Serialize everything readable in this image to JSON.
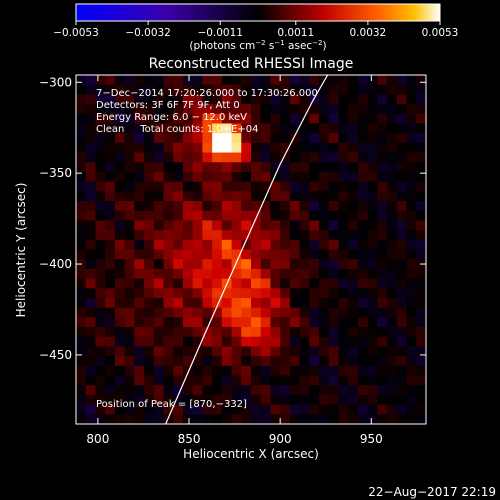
{
  "chart_data": {
    "type": "heatmap",
    "title": "Reconstructed RHESSI Image",
    "xlabel": "Heliocentric X (arcsec)",
    "ylabel": "Heliocentric Y (arcsec)",
    "xlim": [
      788,
      980
    ],
    "ylim": [
      -488,
      -296
    ],
    "x_ticks": [
      800,
      850,
      900,
      950
    ],
    "x_tick_labels": [
      "800",
      "850",
      "900",
      "950"
    ],
    "y_ticks": [
      -300,
      -350,
      -400,
      -450
    ],
    "y_tick_labels": [
      "−300",
      "−350",
      "−400",
      "−450"
    ],
    "colorbar": {
      "ticks": [
        -0.0053,
        -0.0032,
        -0.0011,
        0.0011,
        0.0032,
        0.0053
      ],
      "tick_labels": [
        "−0.0053",
        "−0.0032",
        "−0.0011",
        "0.0011",
        "0.0032",
        "0.0053"
      ],
      "units_main": "(photons cm",
      "units_exp1": "−2",
      "units_s": " s",
      "units_exp2": "−1",
      "units_asec": " asec",
      "units_exp3": "−2",
      "units_close": ")"
    },
    "annotations": [
      "7−Dec−2014 17:20:26.000 to 17:30:26.000",
      "Detectors: 3F 6F 7F 9F, Att 0",
      "Energy Range: 6.0 − 12.0 keV",
      "Clean     Total counts: 1.0+E+04"
    ],
    "peak_label": "Position of Peak = [870,−332]",
    "peak": [
      870,
      -332
    ],
    "limb_curve": [
      [
        832,
        -500
      ],
      [
        858,
        -440
      ],
      [
        880,
        -390
      ],
      [
        900,
        -345
      ],
      [
        918,
        -310
      ],
      [
        926,
        -296
      ]
    ],
    "sources": [
      {
        "x": 870,
        "y": -333,
        "sigma": 7,
        "amp": 1.0
      },
      {
        "x": 862,
        "y": -325,
        "sigma": 14,
        "amp": 0.35
      },
      {
        "x": 872,
        "y": -390,
        "sigma": 20,
        "amp": 0.28
      },
      {
        "x": 880,
        "y": -420,
        "sigma": 14,
        "amp": 0.3
      },
      {
        "x": 888,
        "y": -438,
        "sigma": 10,
        "amp": 0.3
      },
      {
        "x": 850,
        "y": -405,
        "sigma": 35,
        "amp": 0.2
      }
    ],
    "grid": false
  },
  "footer": {
    "date": "22−Aug−2017 22:19"
  }
}
